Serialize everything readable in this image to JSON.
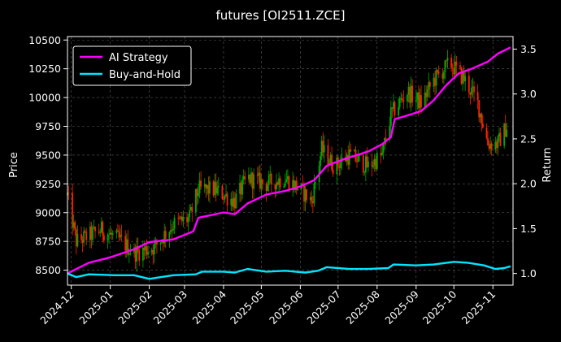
{
  "chart_data": {
    "type": "line",
    "title": "futures [OI2511.ZCE]",
    "ylabel_left": "Price",
    "ylabel_right": "Return",
    "x_ticks": [
      "2024-12",
      "2025-01",
      "2025-02",
      "2025-03",
      "2025-04",
      "2025-05",
      "2025-06",
      "2025-07",
      "2025-08",
      "2025-09",
      "2025-10",
      "2025-11"
    ],
    "x_range": [
      "2024-11-28",
      "2025-11-17"
    ],
    "price_ticks": [
      8500,
      8750,
      9000,
      9250,
      9500,
      9750,
      10000,
      10250,
      10500
    ],
    "price_ylim": [
      8370,
      10530
    ],
    "return_ticks": [
      1.0,
      1.5,
      2.0,
      2.5,
      3.0,
      3.5
    ],
    "return_ylim": [
      0.87,
      3.64
    ],
    "grid": true,
    "legend_position": "top-left",
    "candles_up_color": "#00aa00",
    "candles_down_color": "#ff2200",
    "price_anchors": [
      {
        "date": "2024-11-28",
        "price": 9150
      },
      {
        "date": "2024-12-05",
        "price": 8750
      },
      {
        "date": "2024-12-15",
        "price": 8800
      },
      {
        "date": "2024-12-25",
        "price": 8850
      },
      {
        "date": "2025-01-10",
        "price": 8750
      },
      {
        "date": "2025-01-20",
        "price": 8650
      },
      {
        "date": "2025-02-05",
        "price": 8700
      },
      {
        "date": "2025-02-20",
        "price": 8900
      },
      {
        "date": "2025-03-05",
        "price": 8950
      },
      {
        "date": "2025-03-12",
        "price": 9200
      },
      {
        "date": "2025-03-25",
        "price": 9200
      },
      {
        "date": "2025-04-10",
        "price": 9100
      },
      {
        "date": "2025-04-20",
        "price": 9300
      },
      {
        "date": "2025-05-05",
        "price": 9250
      },
      {
        "date": "2025-05-20",
        "price": 9300
      },
      {
        "date": "2025-06-01",
        "price": 9200
      },
      {
        "date": "2025-06-10",
        "price": 9100
      },
      {
        "date": "2025-06-18",
        "price": 9550
      },
      {
        "date": "2025-06-28",
        "price": 9400
      },
      {
        "date": "2025-07-10",
        "price": 9500
      },
      {
        "date": "2025-07-25",
        "price": 9400
      },
      {
        "date": "2025-08-05",
        "price": 9500
      },
      {
        "date": "2025-08-12",
        "price": 9850
      },
      {
        "date": "2025-08-25",
        "price": 10050
      },
      {
        "date": "2025-09-05",
        "price": 9950
      },
      {
        "date": "2025-09-15",
        "price": 10150
      },
      {
        "date": "2025-09-28",
        "price": 10300
      },
      {
        "date": "2025-10-10",
        "price": 10150
      },
      {
        "date": "2025-10-20",
        "price": 9950
      },
      {
        "date": "2025-10-28",
        "price": 9600
      },
      {
        "date": "2025-11-05",
        "price": 9600
      },
      {
        "date": "2025-11-12",
        "price": 9750
      }
    ],
    "series": [
      {
        "name": "AI Strategy",
        "color": "#ff00ff",
        "points": [
          {
            "date": "2024-11-28",
            "value": 1.0
          },
          {
            "date": "2024-12-15",
            "value": 1.12
          },
          {
            "date": "2025-01-01",
            "value": 1.18
          },
          {
            "date": "2025-01-20",
            "value": 1.27
          },
          {
            "date": "2025-02-01",
            "value": 1.35
          },
          {
            "date": "2025-02-20",
            "value": 1.38
          },
          {
            "date": "2025-03-08",
            "value": 1.47
          },
          {
            "date": "2025-03-12",
            "value": 1.62
          },
          {
            "date": "2025-04-01",
            "value": 1.68
          },
          {
            "date": "2025-04-10",
            "value": 1.66
          },
          {
            "date": "2025-04-20",
            "value": 1.78
          },
          {
            "date": "2025-05-05",
            "value": 1.88
          },
          {
            "date": "2025-05-20",
            "value": 1.92
          },
          {
            "date": "2025-06-01",
            "value": 1.97
          },
          {
            "date": "2025-06-12",
            "value": 2.04
          },
          {
            "date": "2025-06-22",
            "value": 2.2
          },
          {
            "date": "2025-07-05",
            "value": 2.27
          },
          {
            "date": "2025-07-25",
            "value": 2.36
          },
          {
            "date": "2025-08-05",
            "value": 2.44
          },
          {
            "date": "2025-08-12",
            "value": 2.52
          },
          {
            "date": "2025-08-15",
            "value": 2.72
          },
          {
            "date": "2025-08-25",
            "value": 2.76
          },
          {
            "date": "2025-09-05",
            "value": 2.81
          },
          {
            "date": "2025-09-15",
            "value": 2.93
          },
          {
            "date": "2025-09-25",
            "value": 3.1
          },
          {
            "date": "2025-10-05",
            "value": 3.23
          },
          {
            "date": "2025-10-15",
            "value": 3.28
          },
          {
            "date": "2025-10-28",
            "value": 3.36
          },
          {
            "date": "2025-11-05",
            "value": 3.45
          },
          {
            "date": "2025-11-15",
            "value": 3.52
          }
        ]
      },
      {
        "name": "Buy-and-Hold",
        "color": "#00e5ff",
        "points": [
          {
            "date": "2024-11-28",
            "value": 1.0
          },
          {
            "date": "2024-12-05",
            "value": 0.96
          },
          {
            "date": "2024-12-15",
            "value": 0.99
          },
          {
            "date": "2025-01-05",
            "value": 0.98
          },
          {
            "date": "2025-01-20",
            "value": 0.98
          },
          {
            "date": "2025-02-01",
            "value": 0.94
          },
          {
            "date": "2025-02-20",
            "value": 0.98
          },
          {
            "date": "2025-03-10",
            "value": 0.99
          },
          {
            "date": "2025-03-15",
            "value": 1.02
          },
          {
            "date": "2025-04-01",
            "value": 1.02
          },
          {
            "date": "2025-04-10",
            "value": 1.01
          },
          {
            "date": "2025-04-20",
            "value": 1.05
          },
          {
            "date": "2025-05-05",
            "value": 1.02
          },
          {
            "date": "2025-05-20",
            "value": 1.03
          },
          {
            "date": "2025-06-05",
            "value": 1.01
          },
          {
            "date": "2025-06-15",
            "value": 1.03
          },
          {
            "date": "2025-06-22",
            "value": 1.07
          },
          {
            "date": "2025-07-10",
            "value": 1.05
          },
          {
            "date": "2025-07-25",
            "value": 1.05
          },
          {
            "date": "2025-08-10",
            "value": 1.06
          },
          {
            "date": "2025-08-14",
            "value": 1.1
          },
          {
            "date": "2025-09-01",
            "value": 1.09
          },
          {
            "date": "2025-09-15",
            "value": 1.1
          },
          {
            "date": "2025-10-01",
            "value": 1.13
          },
          {
            "date": "2025-10-12",
            "value": 1.12
          },
          {
            "date": "2025-10-25",
            "value": 1.09
          },
          {
            "date": "2025-11-03",
            "value": 1.05
          },
          {
            "date": "2025-11-10",
            "value": 1.06
          },
          {
            "date": "2025-11-15",
            "value": 1.08
          }
        ]
      }
    ]
  }
}
